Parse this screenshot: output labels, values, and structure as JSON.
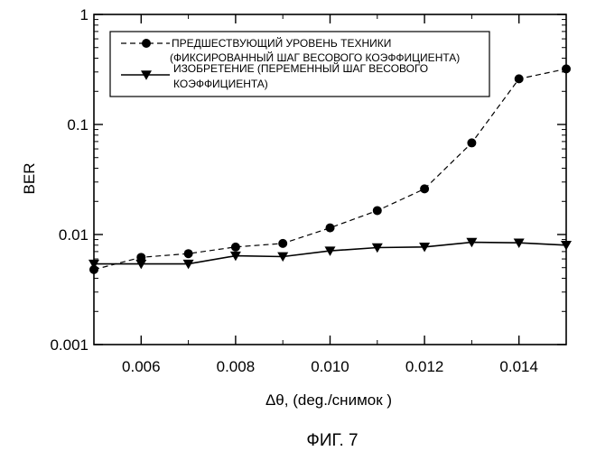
{
  "chart_data": {
    "type": "line",
    "title": "",
    "xlabel": "Δθ, (deg./снимок    )",
    "ylabel": "BER",
    "caption": "ФИГ. 7",
    "xlim": [
      0.005,
      0.015
    ],
    "ylim": [
      0.001,
      1
    ],
    "yscale": "log",
    "grid": false,
    "legend_position": "top-left",
    "x_ticks": [
      "0.006",
      "0.008",
      "0.010",
      "0.012",
      "0.014"
    ],
    "x_tick_values": [
      0.006,
      0.008,
      0.01,
      0.012,
      0.014
    ],
    "y_ticks": [
      "0.001",
      "0.01",
      "0.1",
      "1"
    ],
    "y_tick_values": [
      0.001,
      0.01,
      0.1,
      1
    ],
    "series": [
      {
        "name": "ПРЕДШЕСТВУЮЩИЙ УРОВЕНЬ ТЕХНИКИ",
        "name_line2": "(ФИКСИРОВАННЫЙ ШАГ ВЕСОВОГО КОЭФФИЦИЕНТА)",
        "marker": "circle",
        "line_style": "dashed",
        "x": [
          0.005,
          0.006,
          0.007,
          0.008,
          0.009,
          0.01,
          0.011,
          0.012,
          0.013,
          0.014,
          0.015
        ],
        "values": [
          0.0048,
          0.0062,
          0.0067,
          0.0077,
          0.0083,
          0.0115,
          0.0165,
          0.026,
          0.068,
          0.26,
          0.32
        ]
      },
      {
        "name": "ИЗОБРЕТЕНИЕ (ПЕРЕМЕННЫЙ ШАГ ВЕСОВОГО",
        "name_line2": "КОЭФФИЦИЕНТА)",
        "marker": "triangle-down",
        "line_style": "solid",
        "x": [
          0.005,
          0.006,
          0.007,
          0.008,
          0.009,
          0.01,
          0.011,
          0.012,
          0.013,
          0.014,
          0.015
        ],
        "values": [
          0.0054,
          0.0054,
          0.0054,
          0.0064,
          0.0063,
          0.0071,
          0.0076,
          0.0077,
          0.0085,
          0.0084,
          0.008
        ]
      }
    ]
  }
}
